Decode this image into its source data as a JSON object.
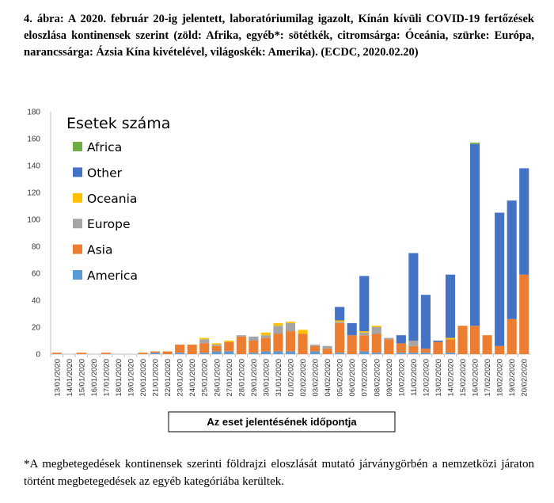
{
  "caption": "4. ábra: A 2020. február 20-ig jelentett, laboratóriumilag igazolt, Kínán kívüli COVID-19 fertőzések eloszlása kontinensek szerint (zöld: Afrika, egyéb*: sötétkék, citromsárga: Óceánia, szürke: Európa, narancssárga: Ázsia Kína kivételével, világoskék: Amerika). (ECDC, 2020.02.20)",
  "footnote": "*A megbetegedések kontinensek szerinti földrajzi eloszlását mutató járványgörbén a nemzetközi járaton történt megbetegedések az egyéb kategóriába kerültek.",
  "chart_data": {
    "type": "bar",
    "stacked": true,
    "legend_title": "Esetek száma",
    "legend_position": "top-left",
    "xlabel": "Az eset jelentésének időpontja",
    "ylabel": "",
    "ylim": [
      0,
      180
    ],
    "yticks": [
      0,
      20,
      40,
      60,
      80,
      100,
      120,
      140,
      160,
      180
    ],
    "grid": false,
    "categories": [
      "13/01/2020",
      "14/01/2020",
      "15/01/2020",
      "16/01/2020",
      "17/01/2020",
      "18/01/2020",
      "19/01/2020",
      "20/01/2020",
      "21/01/2020",
      "22/01/2020",
      "23/01/2020",
      "24/01/2020",
      "25/01/2020",
      "26/01/2020",
      "27/01/2020",
      "28/01/2020",
      "29/01/2020",
      "30/01/2020",
      "31/01/2020",
      "01/02/2020",
      "02/02/2020",
      "03/02/2020",
      "04/02/2020",
      "05/02/2020",
      "06/02/2020",
      "07/02/2020",
      "08/02/2020",
      "09/02/2020",
      "10/02/2020",
      "11/02/2020",
      "12/02/2020",
      "13/02/2020",
      "14/02/2020",
      "15/02/2020",
      "16/02/2020",
      "17/02/2020",
      "18/02/2020",
      "19/02/2020",
      "20/02/2020"
    ],
    "series": [
      {
        "name": "America",
        "color": "#5b9bd5",
        "values": [
          0,
          0,
          0,
          0,
          0,
          0,
          0,
          0,
          1,
          0,
          1,
          0,
          1,
          2,
          2,
          0,
          1,
          2,
          2,
          2,
          0,
          2,
          0,
          1,
          0,
          2,
          1,
          0,
          1,
          1,
          1,
          0,
          1,
          0,
          0,
          0,
          0,
          0,
          0
        ]
      },
      {
        "name": "Asia",
        "color": "#ed7d31",
        "values": [
          1,
          0,
          1,
          0,
          1,
          0,
          0,
          1,
          1,
          2,
          6,
          7,
          7,
          4,
          7,
          13,
          9,
          10,
          13,
          15,
          15,
          4,
          4,
          22,
          14,
          12,
          14,
          11,
          7,
          5,
          3,
          9,
          10,
          21,
          21,
          14,
          6,
          26,
          59
        ]
      },
      {
        "name": "Europe",
        "color": "#a5a5a5",
        "values": [
          0,
          0,
          0,
          0,
          0,
          0,
          0,
          0,
          0,
          0,
          0,
          0,
          3,
          1,
          0,
          1,
          3,
          2,
          6,
          6,
          0,
          1,
          2,
          1,
          0,
          2,
          5,
          1,
          0,
          4,
          0,
          0,
          0,
          0,
          0,
          0,
          0,
          0,
          0
        ]
      },
      {
        "name": "Oceania",
        "color": "#ffc000",
        "values": [
          0,
          0,
          0,
          0,
          0,
          0,
          0,
          0,
          0,
          0,
          0,
          0,
          1,
          1,
          1,
          0,
          0,
          2,
          2,
          1,
          3,
          0,
          0,
          1,
          0,
          1,
          1,
          0,
          0,
          0,
          0,
          0,
          1,
          0,
          0,
          0,
          0,
          0,
          0
        ]
      },
      {
        "name": "Other",
        "color": "#4472c4",
        "values": [
          0,
          0,
          0,
          0,
          0,
          0,
          0,
          0,
          0,
          0,
          0,
          0,
          0,
          0,
          0,
          0,
          0,
          0,
          0,
          0,
          0,
          0,
          0,
          10,
          9,
          41,
          0,
          0,
          6,
          65,
          40,
          1,
          47,
          0,
          135,
          0,
          99,
          88,
          79
        ]
      },
      {
        "name": "Africa",
        "color": "#70ad47",
        "values": [
          0,
          0,
          0,
          0,
          0,
          0,
          0,
          0,
          0,
          0,
          0,
          0,
          0,
          0,
          0,
          0,
          0,
          0,
          0,
          0,
          0,
          0,
          0,
          0,
          0,
          0,
          0,
          0,
          0,
          0,
          0,
          0,
          0,
          0,
          1,
          0,
          0,
          0,
          0
        ]
      }
    ],
    "legend_order": [
      "Africa",
      "Other",
      "Oceania",
      "Europe",
      "Asia",
      "America"
    ]
  }
}
